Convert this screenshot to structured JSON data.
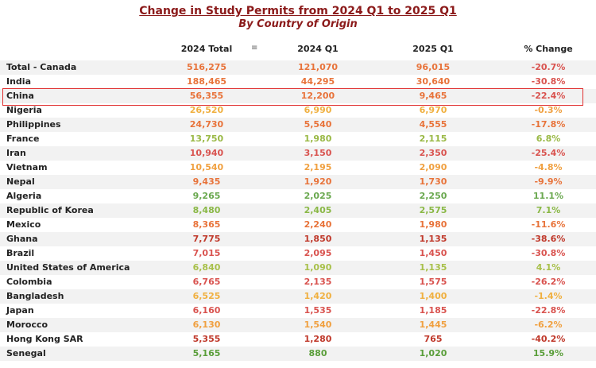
{
  "chart_data": {
    "type": "table",
    "title": "Change in Study Permits from 2024 Q1 to 2025 Q1",
    "subtitle": "By Country of Origin",
    "columns": [
      "",
      "2024 Total",
      "2024 Q1",
      "2025 Q1",
      "% Change"
    ],
    "highlighted_row": "China",
    "rows": [
      {
        "country": "Total - Canada",
        "total_2024": "516,275",
        "q1_2024": "121,070",
        "q1_2025": "96,015",
        "pct": "-20.7%",
        "c_total": "#e8733a",
        "c_q1": "#e8733a",
        "c_q1b": "#e8733a",
        "c_pct": "#d9534f"
      },
      {
        "country": "India",
        "total_2024": "188,465",
        "q1_2024": "44,295",
        "q1_2025": "30,640",
        "pct": "-30.8%",
        "c_total": "#e8733a",
        "c_q1": "#e8733a",
        "c_q1b": "#e8733a",
        "c_pct": "#d9534f"
      },
      {
        "country": "China",
        "total_2024": "56,355",
        "q1_2024": "12,200",
        "q1_2025": "9,465",
        "pct": "-22.4%",
        "c_total": "#e8733a",
        "c_q1": "#e8733a",
        "c_q1b": "#e8733a",
        "c_pct": "#d9534f"
      },
      {
        "country": "Nigeria",
        "total_2024": "26,520",
        "q1_2024": "6,990",
        "q1_2025": "6,970",
        "pct": "-0.3%",
        "c_total": "#f0b040",
        "c_q1": "#f0b040",
        "c_q1b": "#f0b040",
        "c_pct": "#f0a040"
      },
      {
        "country": "Philippines",
        "total_2024": "24,730",
        "q1_2024": "5,540",
        "q1_2025": "4,555",
        "pct": "-17.8%",
        "c_total": "#e8733a",
        "c_q1": "#e8733a",
        "c_q1b": "#e8733a",
        "c_pct": "#e8733a"
      },
      {
        "country": "France",
        "total_2024": "13,750",
        "q1_2024": "1,980",
        "q1_2025": "2,115",
        "pct": "6.8%",
        "c_total": "#9ab946",
        "c_q1": "#9ab946",
        "c_q1b": "#9ab946",
        "c_pct": "#9ab946"
      },
      {
        "country": "Iran",
        "total_2024": "10,940",
        "q1_2024": "3,150",
        "q1_2025": "2,350",
        "pct": "-25.4%",
        "c_total": "#d9534f",
        "c_q1": "#d9534f",
        "c_q1b": "#d9534f",
        "c_pct": "#d9534f"
      },
      {
        "country": "Vietnam",
        "total_2024": "10,540",
        "q1_2024": "2,195",
        "q1_2025": "2,090",
        "pct": "-4.8%",
        "c_total": "#f0a040",
        "c_q1": "#f0a040",
        "c_q1b": "#f0a040",
        "c_pct": "#f0a040"
      },
      {
        "country": "Nepal",
        "total_2024": "9,435",
        "q1_2024": "1,920",
        "q1_2025": "1,730",
        "pct": "-9.9%",
        "c_total": "#e8733a",
        "c_q1": "#e8733a",
        "c_q1b": "#e8733a",
        "c_pct": "#e8733a"
      },
      {
        "country": "Algeria",
        "total_2024": "9,265",
        "q1_2024": "2,025",
        "q1_2025": "2,250",
        "pct": "11.1%",
        "c_total": "#6aa84f",
        "c_q1": "#6aa84f",
        "c_q1b": "#6aa84f",
        "c_pct": "#6aa84f"
      },
      {
        "country": "Republic of Korea",
        "total_2024": "8,480",
        "q1_2024": "2,405",
        "q1_2025": "2,575",
        "pct": "7.1%",
        "c_total": "#8ab846",
        "c_q1": "#8ab846",
        "c_q1b": "#8ab846",
        "c_pct": "#8ab846"
      },
      {
        "country": "Mexico",
        "total_2024": "8,365",
        "q1_2024": "2,240",
        "q1_2025": "1,980",
        "pct": "-11.6%",
        "c_total": "#e8733a",
        "c_q1": "#e8733a",
        "c_q1b": "#e8733a",
        "c_pct": "#e8733a"
      },
      {
        "country": "Ghana",
        "total_2024": "7,775",
        "q1_2024": "1,850",
        "q1_2025": "1,135",
        "pct": "-38.6%",
        "c_total": "#c0392b",
        "c_q1": "#c0392b",
        "c_q1b": "#c0392b",
        "c_pct": "#c0392b"
      },
      {
        "country": "Brazil",
        "total_2024": "7,015",
        "q1_2024": "2,095",
        "q1_2025": "1,450",
        "pct": "-30.8%",
        "c_total": "#d9534f",
        "c_q1": "#d9534f",
        "c_q1b": "#d9534f",
        "c_pct": "#d9534f"
      },
      {
        "country": "United States of America",
        "total_2024": "6,840",
        "q1_2024": "1,090",
        "q1_2025": "1,135",
        "pct": "4.1%",
        "c_total": "#a8c04a",
        "c_q1": "#a8c04a",
        "c_q1b": "#a8c04a",
        "c_pct": "#a8c04a"
      },
      {
        "country": "Colombia",
        "total_2024": "6,765",
        "q1_2024": "2,135",
        "q1_2025": "1,575",
        "pct": "-26.2%",
        "c_total": "#d9534f",
        "c_q1": "#d9534f",
        "c_q1b": "#d9534f",
        "c_pct": "#d9534f"
      },
      {
        "country": "Bangladesh",
        "total_2024": "6,525",
        "q1_2024": "1,420",
        "q1_2025": "1,400",
        "pct": "-1.4%",
        "c_total": "#f0b040",
        "c_q1": "#f0b040",
        "c_q1b": "#f0b040",
        "c_pct": "#f0b040"
      },
      {
        "country": "Japan",
        "total_2024": "6,160",
        "q1_2024": "1,535",
        "q1_2025": "1,185",
        "pct": "-22.8%",
        "c_total": "#d9534f",
        "c_q1": "#d9534f",
        "c_q1b": "#d9534f",
        "c_pct": "#d9534f"
      },
      {
        "country": "Morocco",
        "total_2024": "6,130",
        "q1_2024": "1,540",
        "q1_2025": "1,445",
        "pct": "-6.2%",
        "c_total": "#f0a040",
        "c_q1": "#f0a040",
        "c_q1b": "#f0a040",
        "c_pct": "#f0a040"
      },
      {
        "country": "Hong Kong SAR",
        "total_2024": "5,355",
        "q1_2024": "1,280",
        "q1_2025": "765",
        "pct": "-40.2%",
        "c_total": "#c0392b",
        "c_q1": "#c0392b",
        "c_q1b": "#c0392b",
        "c_pct": "#c0392b"
      },
      {
        "country": "Senegal",
        "total_2024": "5,165",
        "q1_2024": "880",
        "q1_2025": "1,020",
        "pct": "15.9%",
        "c_total": "#5a9e3a",
        "c_q1": "#5a9e3a",
        "c_q1b": "#5a9e3a",
        "c_pct": "#5a9e3a"
      }
    ]
  },
  "icons": {
    "sort": "filter-sort-icon"
  }
}
